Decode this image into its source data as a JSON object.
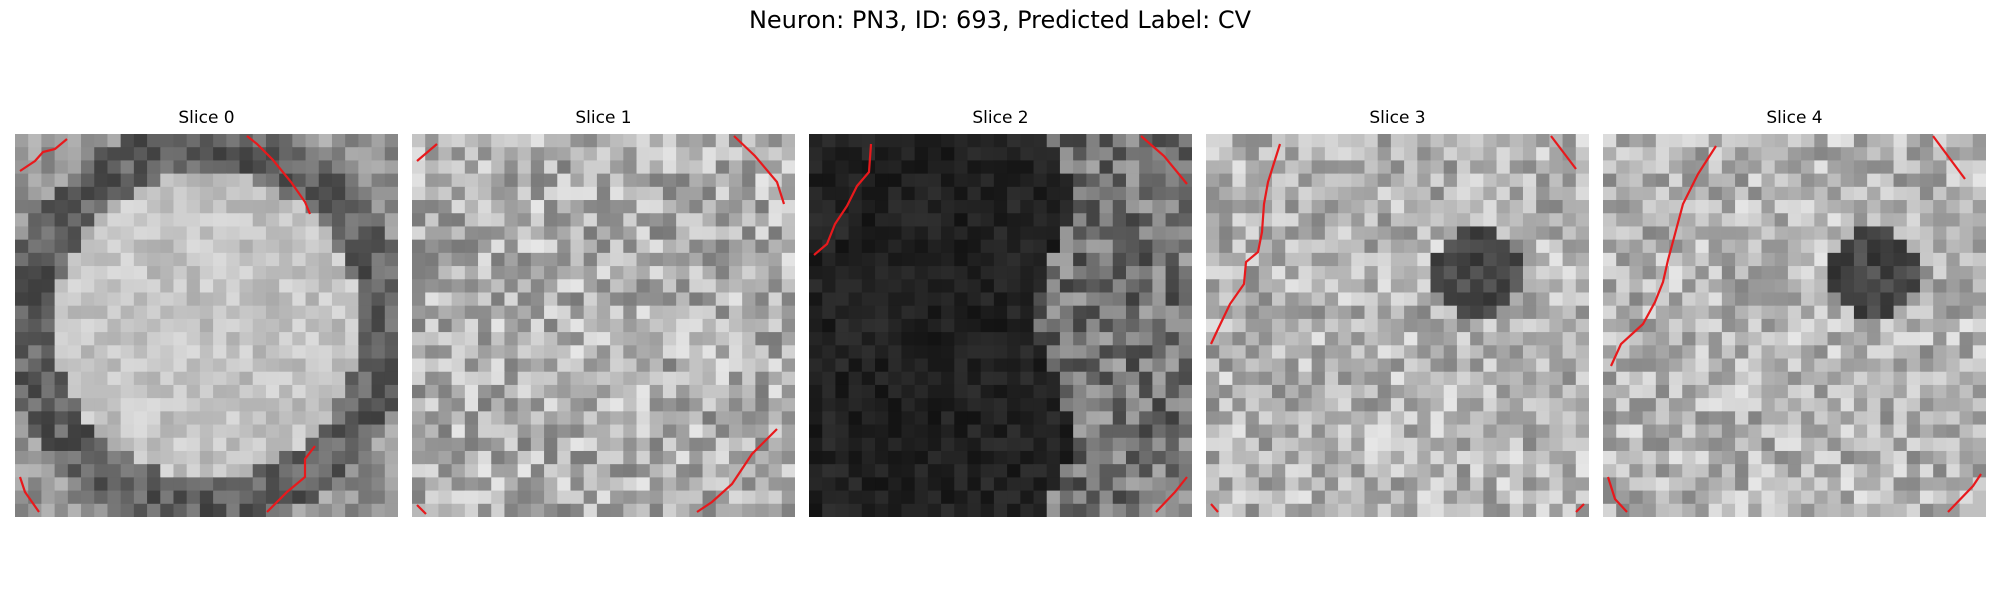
{
  "figure": {
    "title": "Neuron: PN3, ID: 693, Predicted Label: CV"
  },
  "panels": [
    {
      "title": "Slice 0",
      "pattern": "ring",
      "overlay_color": "#e8191c"
    },
    {
      "title": "Slice 1",
      "pattern": "noisy-light",
      "overlay_color": "#e8191c"
    },
    {
      "title": "Slice 2",
      "pattern": "dark-left",
      "overlay_color": "#e8191c"
    },
    {
      "title": "Slice 3",
      "pattern": "noisy-spot",
      "overlay_color": "#e8191c"
    },
    {
      "title": "Slice 4",
      "pattern": "noisy-spot",
      "overlay_color": "#e8191c"
    }
  ]
}
